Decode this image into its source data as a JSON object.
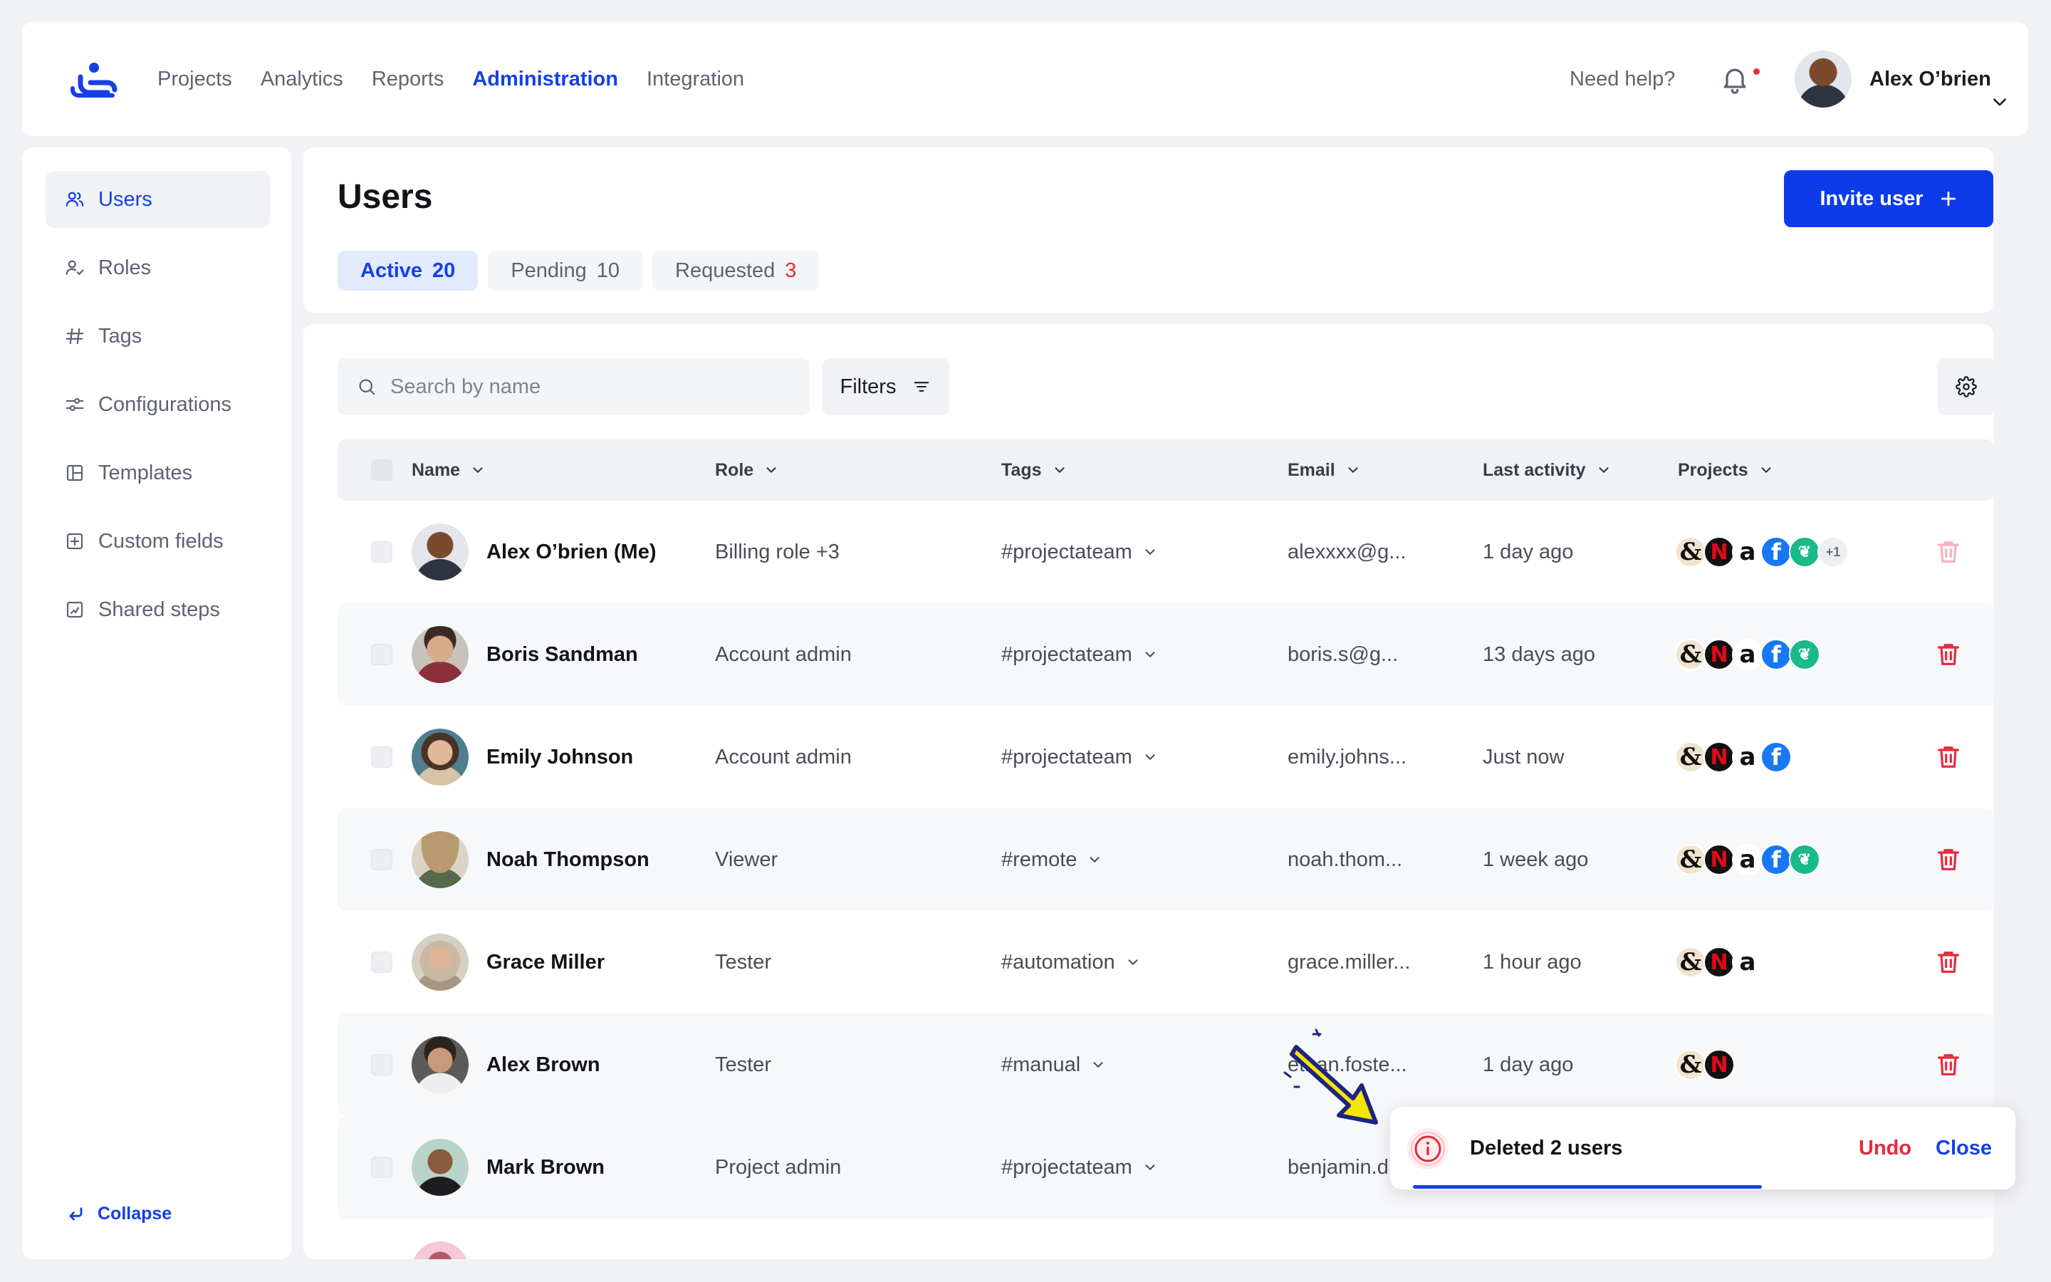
{
  "nav": {
    "items": [
      {
        "label": "Projects",
        "active": false
      },
      {
        "label": "Analytics",
        "active": false
      },
      {
        "label": "Reports",
        "active": false
      },
      {
        "label": "Administration",
        "active": true
      },
      {
        "label": "Integration",
        "active": false
      }
    ],
    "help": "Need help?",
    "user_name": "Alex O’brien"
  },
  "sidebar": {
    "items": [
      {
        "label": "Users",
        "icon": "users-icon",
        "active": true
      },
      {
        "label": "Roles",
        "icon": "roles-icon",
        "active": false
      },
      {
        "label": "Tags",
        "icon": "hash-icon",
        "active": false
      },
      {
        "label": "Configurations",
        "icon": "sliders-icon",
        "active": false
      },
      {
        "label": "Templates",
        "icon": "template-icon",
        "active": false
      },
      {
        "label": "Custom fields",
        "icon": "plus-square-icon",
        "active": false
      },
      {
        "label": "Shared steps",
        "icon": "steps-icon",
        "active": false
      }
    ],
    "collapse": "Collapse"
  },
  "page": {
    "title": "Users",
    "invite": "Invite user",
    "tabs": [
      {
        "label": "Active",
        "count": "20",
        "active": true
      },
      {
        "label": "Pending",
        "count": "10",
        "active": false
      },
      {
        "label": "Requested",
        "count": "3",
        "active": false
      }
    ]
  },
  "toolbar": {
    "search_placeholder": "Search by name",
    "filters": "Filters"
  },
  "table": {
    "columns": [
      "Name",
      "Role",
      "Tags",
      "Email",
      "Last activity",
      "Projects"
    ],
    "rows": [
      {
        "name": "Alex O’brien (Me)",
        "role": "Billing role +3",
        "tag": "#projectateam",
        "email": "alexxxx@g...",
        "activity": "1 day ago",
        "projects": [
          "&",
          "N",
          "a",
          "f",
          "leaf"
        ],
        "more": "+1"
      },
      {
        "name": "Boris Sandman",
        "role": "Account admin",
        "tag": "#projectateam",
        "email": "boris.s@g...",
        "activity": "13 days ago",
        "projects": [
          "&",
          "N",
          "a",
          "f",
          "leaf"
        ]
      },
      {
        "name": "Emily Johnson",
        "role": "Account admin",
        "tag": "#projectateam",
        "email": "emily.johns...",
        "activity": "Just now",
        "projects": [
          "&",
          "N",
          "a",
          "f"
        ]
      },
      {
        "name": "Noah Thompson",
        "role": "Viewer",
        "tag": "#remote",
        "email": "noah.thom...",
        "activity": "1 week ago",
        "projects": [
          "&",
          "N",
          "a",
          "f",
          "leaf"
        ]
      },
      {
        "name": "Grace Miller",
        "role": "Tester",
        "tag": "#automation",
        "email": "grace.miller...",
        "activity": "1 hour ago",
        "projects": [
          "&",
          "N",
          "a"
        ]
      },
      {
        "name": "Alex Brown",
        "role": "Tester",
        "tag": "#manual",
        "email": "ethan.foste...",
        "activity": "1 day ago",
        "projects": [
          "&",
          "N"
        ]
      },
      {
        "name": "Mark Brown",
        "role": "Project admin",
        "tag": "#projectateam",
        "email": "benjamin.d",
        "activity": "",
        "projects": []
      }
    ]
  },
  "toast": {
    "message": "Deleted 2 users",
    "undo": "Undo",
    "close": "Close",
    "progress": 0.6
  },
  "colors": {
    "accent": "#1440e6",
    "danger": "#e8293b",
    "background": "#f1f2f5"
  }
}
